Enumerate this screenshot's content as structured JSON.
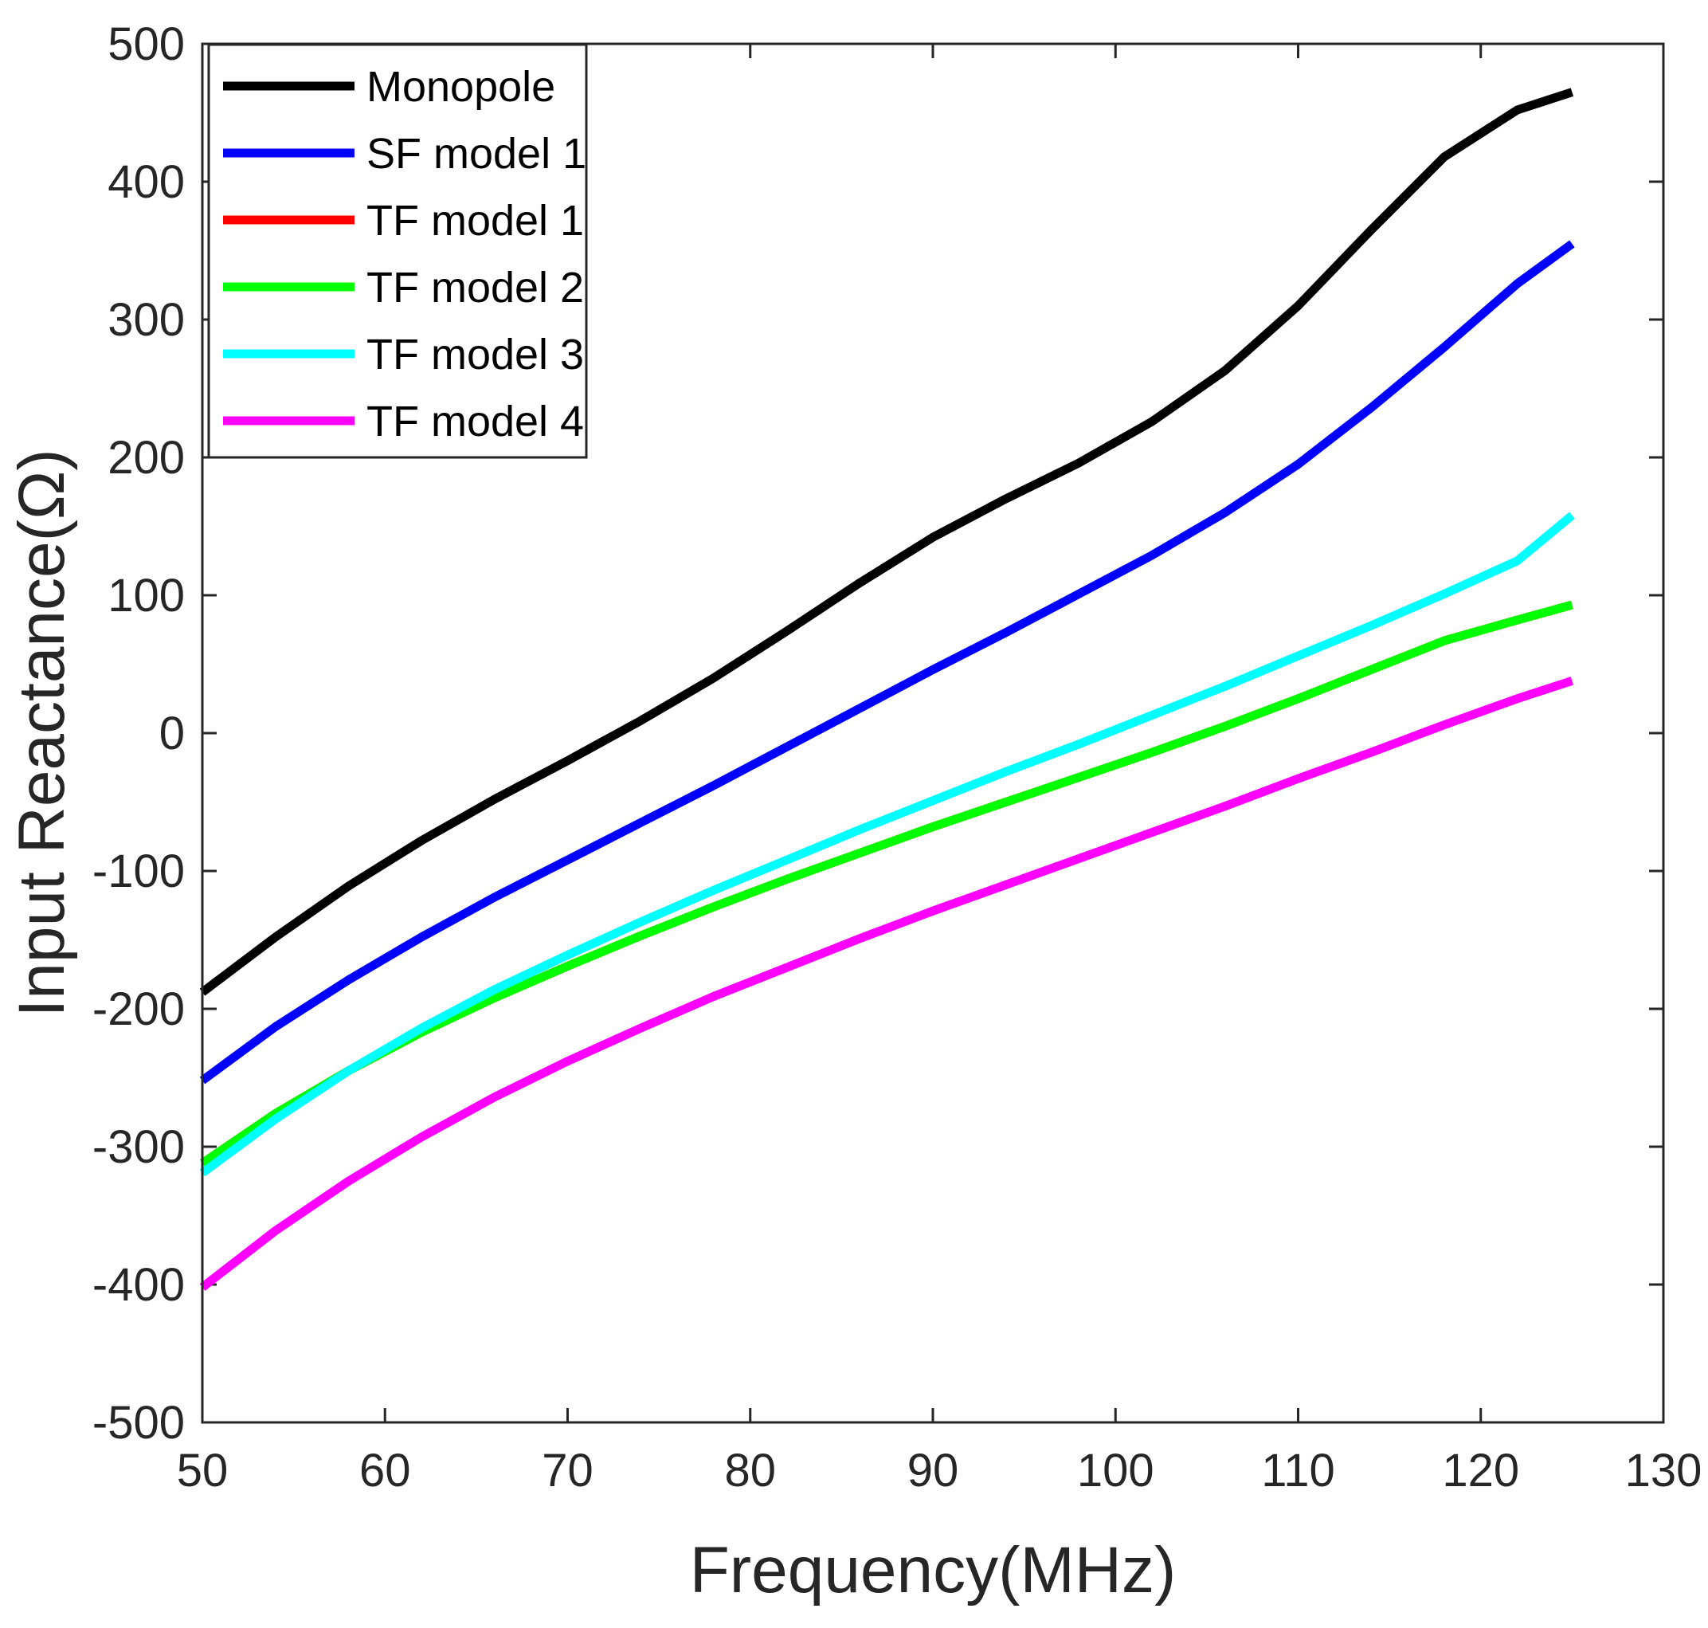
{
  "chart_data": {
    "type": "line",
    "title": "",
    "xlabel": "Frequency(MHz)",
    "ylabel": "Input Reactance(Ω)",
    "xlim": [
      50,
      130
    ],
    "ylim": [
      -500,
      500
    ],
    "xticks": [
      "50",
      "60",
      "70",
      "80",
      "90",
      "100",
      "110",
      "120",
      "130"
    ],
    "yticks": [
      "500",
      "400",
      "300",
      "200",
      "100",
      "0",
      "-100",
      "-200",
      "-300",
      "-400",
      "-500"
    ],
    "legend_position": "top-left",
    "x": [
      50,
      54,
      58,
      62,
      66,
      70,
      74,
      78,
      82,
      86,
      90,
      94,
      98,
      102,
      106,
      110,
      114,
      118,
      122,
      125
    ],
    "series": [
      {
        "name": "Monopole",
        "color": "#000000",
        "values": [
          -188,
          -148,
          -111,
          -78,
          -48,
          -20,
          9,
          40,
          74,
          109,
          142,
          170,
          196,
          226,
          263,
          310,
          365,
          418,
          452,
          465
        ]
      },
      {
        "name": "SF model 1",
        "color": "#0000ff",
        "values": [
          -252,
          -213,
          -179,
          -148,
          -119,
          -92,
          -65,
          -38,
          -10,
          18,
          46,
          73,
          101,
          129,
          160,
          195,
          236,
          280,
          326,
          355
        ]
      },
      {
        "name": "TF model 1",
        "color": "#ff0000",
        "values": [
          -312,
          -276,
          -245,
          -217,
          -192,
          -169,
          -147,
          -126,
          -106,
          -87,
          -68,
          -50,
          -32,
          -14,
          5,
          25,
          46,
          67,
          82,
          93
        ]
      },
      {
        "name": "TF model 2",
        "color": "#00ff00",
        "values": [
          -312,
          -276,
          -245,
          -217,
          -192,
          -169,
          -147,
          -126,
          -106,
          -87,
          -68,
          -50,
          -32,
          -14,
          5,
          25,
          46,
          67,
          82,
          93
        ]
      },
      {
        "name": "TF model 3",
        "color": "#00ffff",
        "values": [
          -319,
          -280,
          -245,
          -214,
          -186,
          -161,
          -137,
          -114,
          -92,
          -70,
          -49,
          -28,
          -8,
          13,
          34,
          56,
          78,
          101,
          125,
          158
        ]
      },
      {
        "name": "TF model 4",
        "color": "#ff00ff",
        "values": [
          -402,
          -361,
          -325,
          -293,
          -264,
          -238,
          -214,
          -191,
          -170,
          -149,
          -129,
          -110,
          -91,
          -72,
          -53,
          -33,
          -14,
          6,
          25,
          38
        ]
      }
    ]
  }
}
